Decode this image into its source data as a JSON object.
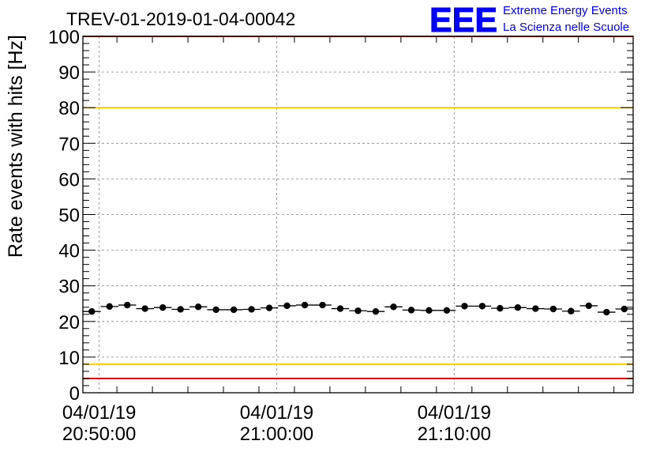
{
  "header": {
    "run_title": "TREV-01-2019-01-04-00042",
    "logo_letters": "EEE",
    "logo_line1": "Extreme Energy Events",
    "logo_line2": "La Scienza nelle Scuole"
  },
  "colors": {
    "upper_limit_red": "#ff0000",
    "upper_warn_yellow": "#ffcc00",
    "lower_warn_yellow": "#ffcc00",
    "lower_limit_red": "#ff0000",
    "points": "#000000",
    "logo_blue": "#0000ff",
    "grid": "#888888"
  },
  "chart_data": {
    "type": "scatter",
    "title": "",
    "xlabel": "",
    "ylabel": "Rate events with hits [Hz]",
    "ylim": [
      0,
      100
    ],
    "y_ticks": [
      0,
      10,
      20,
      30,
      40,
      50,
      60,
      70,
      80,
      90,
      100
    ],
    "x_tick_labels": [
      {
        "time": "20:50:00",
        "date": "04/01/19",
        "line1": "04/01/19",
        "line2": "20:50:00"
      },
      {
        "time": "21:00:00",
        "date": "04/01/19",
        "line1": "04/01/19",
        "line2": "21:00:00"
      },
      {
        "time": "21:10:00",
        "date": "04/01/19",
        "line1": "04/01/19",
        "line2": "21:10:00"
      }
    ],
    "x_axis": "time (HH:MM:SS, 04/01/19)",
    "xlim": [
      "20:49:05",
      "21:20:05"
    ],
    "grid": true,
    "reference_lines": [
      {
        "y": 100,
        "color": "red"
      },
      {
        "y": 80,
        "color": "yellow"
      },
      {
        "y": 8,
        "color": "yellow"
      },
      {
        "y": 4,
        "color": "red"
      }
    ],
    "series": [
      {
        "x": [
          "20:49:35",
          "20:50:35",
          "20:51:35",
          "20:52:35",
          "20:53:35",
          "20:54:35",
          "20:55:35",
          "20:56:35",
          "20:57:35",
          "20:58:35",
          "20:59:35",
          "21:00:35",
          "21:01:35",
          "21:02:35",
          "21:03:35",
          "21:04:35",
          "21:05:35",
          "21:06:35",
          "21:07:35",
          "21:08:35",
          "21:09:35",
          "21:10:35",
          "21:11:35",
          "21:12:35",
          "21:13:35",
          "21:14:35",
          "21:15:35",
          "21:16:35",
          "21:17:35",
          "21:18:35",
          "21:19:35"
        ],
        "y": [
          22.8,
          24.2,
          24.6,
          23.6,
          23.9,
          23.4,
          24.1,
          23.3,
          23.3,
          23.4,
          23.8,
          24.4,
          24.6,
          24.6,
          23.6,
          23.0,
          22.8,
          24.1,
          23.2,
          23.1,
          23.1,
          24.3,
          24.3,
          23.7,
          23.9,
          23.6,
          23.5,
          22.9,
          24.4,
          22.6,
          23.5
        ]
      }
    ]
  }
}
